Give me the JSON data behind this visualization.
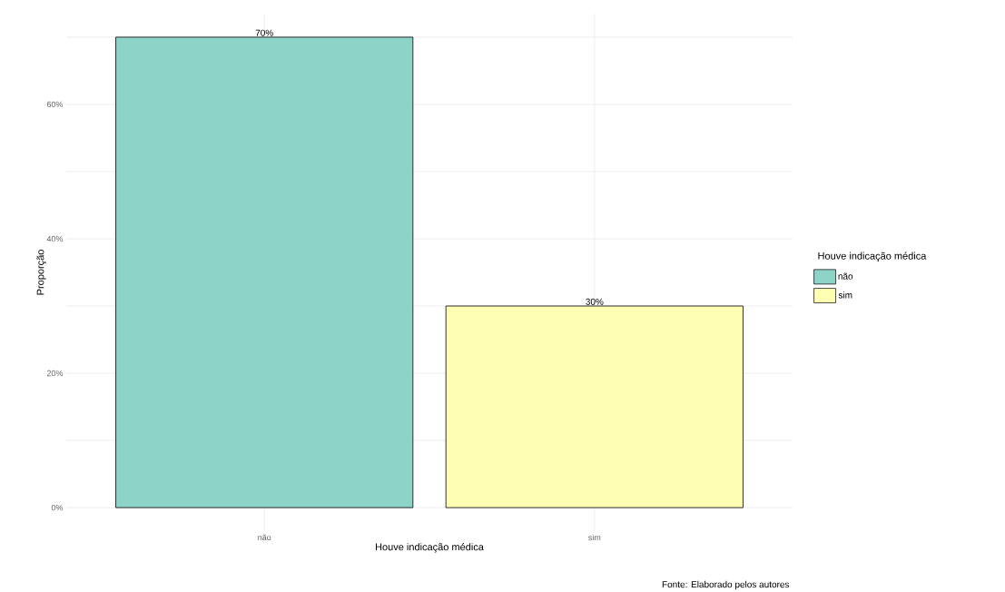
{
  "chart_data": {
    "type": "bar",
    "categories": [
      "não",
      "sim"
    ],
    "series": [
      {
        "name": "não",
        "color": "#8dd3c7",
        "values": [
          70,
          null
        ],
        "value_labels": [
          "70%",
          null
        ]
      },
      {
        "name": "sim",
        "color": "#ffffb3",
        "values": [
          null,
          30
        ],
        "value_labels": [
          null,
          "30%"
        ]
      }
    ],
    "xlabel": "Houve indicação médica",
    "ylabel": "Proporção",
    "legend_title": "Houve indicação médica",
    "annotations": [
      "Fonte: Elaborado pelos autores"
    ],
    "ylim": [
      -3.5,
      73.5
    ],
    "yticks": [
      {
        "value": 0,
        "label": "0%"
      },
      {
        "value": 10,
        "label": null
      },
      {
        "value": 20,
        "label": "20%"
      },
      {
        "value": 30,
        "label": null
      },
      {
        "value": 40,
        "label": "40%"
      },
      {
        "value": 50,
        "label": null
      },
      {
        "value": 60,
        "label": "60%"
      },
      {
        "value": 70,
        "label": null
      }
    ],
    "grid": true,
    "legend": "right"
  }
}
